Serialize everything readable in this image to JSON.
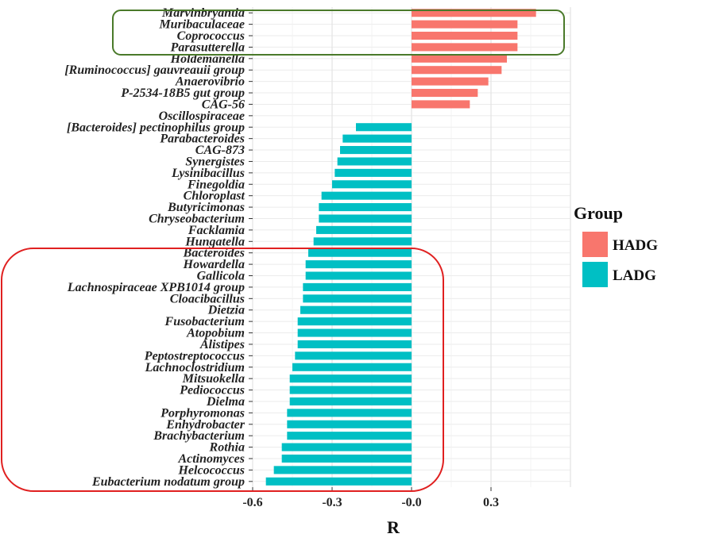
{
  "chart_data": {
    "type": "bar",
    "orientation": "horizontal",
    "xlabel": "R",
    "xlim": [
      -0.6,
      0.6
    ],
    "xticks": [
      -0.6,
      -0.3,
      0.0,
      0.3
    ],
    "xtick_labels": [
      "-0.6",
      "-0.3",
      "-0.0",
      "0.3"
    ],
    "grid": true,
    "legend_title": "Group",
    "legend_position": "right",
    "groups": [
      {
        "name": "HADG",
        "color": "#F8766D"
      },
      {
        "name": "LADG",
        "color": "#00BFC4"
      }
    ],
    "categories": [
      "Marvinbryantia",
      "Muribaculaceae",
      "Coprococcus",
      "Parasutterella",
      "Holdemanella",
      "[Ruminococcus] gauvreauii group",
      "Anaerovibrio",
      "P-2534-18B5 gut group",
      "CAG-56",
      "Oscillospiraceae",
      "[Bacteroides] pectinophilus group",
      "Parabacteroides",
      "CAG-873",
      "Synergistes",
      "Lysinibacillus",
      "Finegoldia",
      "Chloroplast",
      "Butyricimonas",
      "Chryseobacterium",
      "Facklamia",
      "Hungatella",
      "Bacteroides",
      "Howardella",
      "Gallicola",
      "Lachnospiraceae XPB1014 group",
      "Cloacibacillus",
      "Dietzia",
      "Fusobacterium",
      "Atopobium",
      "Alistipes",
      "Peptostreptococcus",
      "Lachnoclostridium",
      "Mitsuokella",
      "Pediococcus",
      "Dielma",
      "Porphyromonas",
      "Enhydrobacter",
      "Brachybacterium",
      "Rothia",
      "Actinomyces",
      "Helcococcus",
      "Eubacterium nodatum group"
    ],
    "values": [
      0.47,
      0.4,
      0.4,
      0.4,
      0.36,
      0.34,
      0.29,
      0.25,
      0.22,
      0.0,
      -0.21,
      -0.26,
      -0.27,
      -0.28,
      -0.29,
      -0.3,
      -0.34,
      -0.35,
      -0.35,
      -0.36,
      -0.37,
      -0.39,
      -0.4,
      -0.4,
      -0.41,
      -0.41,
      -0.42,
      -0.43,
      -0.43,
      -0.43,
      -0.44,
      -0.45,
      -0.46,
      -0.46,
      -0.46,
      -0.47,
      -0.47,
      -0.47,
      -0.49,
      -0.49,
      -0.52,
      -0.55
    ],
    "group_of_value": [
      "HADG",
      "HADG",
      "HADG",
      "HADG",
      "HADG",
      "HADG",
      "HADG",
      "HADG",
      "HADG",
      "HADG",
      "LADG",
      "LADG",
      "LADG",
      "LADG",
      "LADG",
      "LADG",
      "LADG",
      "LADG",
      "LADG",
      "LADG",
      "LADG",
      "LADG",
      "LADG",
      "LADG",
      "LADG",
      "LADG",
      "LADG",
      "LADG",
      "LADG",
      "LADG",
      "LADG",
      "LADG",
      "LADG",
      "LADG",
      "LADG",
      "LADG",
      "LADG",
      "LADG",
      "LADG",
      "LADG",
      "LADG",
      "LADG"
    ],
    "highlight_boxes": [
      {
        "color": "#4a7a2a",
        "from_category": "Marvinbryantia",
        "to_category": "Parasutterella"
      },
      {
        "color": "#e02020",
        "from_category": "Bacteroides",
        "to_category": "Eubacterium nodatum group"
      }
    ]
  }
}
